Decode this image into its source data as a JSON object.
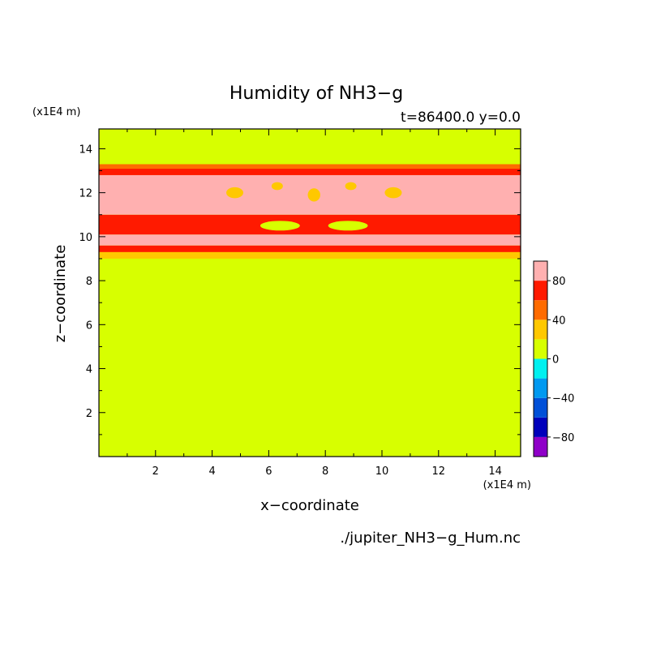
{
  "chart_data": {
    "type": "heatmap",
    "title": "Humidity of NH3−g",
    "subtitle": "t=86400.0 y=0.0",
    "xlabel": "x−coordinate",
    "ylabel": "z−coordinate",
    "x_unit": "(x1E4 m)",
    "y_unit": "(x1E4 m)",
    "source": "./jupiter_NH3−g_Hum.nc",
    "xlim": [
      0,
      14.9
    ],
    "ylim": [
      0,
      14.9
    ],
    "xticks": [
      2,
      4,
      6,
      8,
      10,
      12,
      14
    ],
    "yticks": [
      2,
      4,
      6,
      8,
      10,
      12,
      14
    ],
    "xtick_labels": [
      "2",
      "4",
      "6",
      "8",
      "10",
      "12",
      "14"
    ],
    "ytick_labels": [
      "2",
      "4",
      "6",
      "8",
      "10",
      "12",
      "14"
    ],
    "colorbar": {
      "levels": [
        -100,
        -80,
        -60,
        -40,
        -20,
        0,
        20,
        40,
        60,
        80,
        100
      ],
      "colors": [
        "#8f00c8",
        "#0000bb",
        "#0050d8",
        "#0099f0",
        "#00f0f0",
        "#d7ff00",
        "#ffc800",
        "#ff6b00",
        "#ff1a00",
        "#ffb0b0"
      ],
      "tick_values": [
        80,
        40,
        0,
        -40,
        -80
      ],
      "tick_labels": [
        "80",
        "40",
        "0",
        "−40",
        "−80"
      ]
    },
    "background_value_range": [
      0,
      20
    ],
    "bands": [
      {
        "z_range": [
          0,
          9.0
        ],
        "value_range": [
          0,
          20
        ]
      },
      {
        "z_range": [
          9.0,
          9.3
        ],
        "value_range": [
          20,
          40
        ]
      },
      {
        "z_range": [
          9.3,
          9.6
        ],
        "value_range": [
          60,
          80
        ]
      },
      {
        "z_range": [
          9.6,
          10.1
        ],
        "value_range": [
          80,
          100
        ]
      },
      {
        "z_range": [
          10.1,
          11.0
        ],
        "value_range": [
          60,
          80
        ]
      },
      {
        "z_range": [
          11.0,
          12.8
        ],
        "value_range": [
          80,
          100
        ]
      },
      {
        "z_range": [
          12.8,
          13.1
        ],
        "value_range": [
          60,
          80
        ]
      },
      {
        "z_range": [
          13.1,
          13.3
        ],
        "value_range": [
          40,
          60
        ]
      },
      {
        "z_range": [
          13.3,
          14.9
        ],
        "value_range": [
          0,
          20
        ]
      }
    ],
    "features": [
      {
        "x": 6.4,
        "z": 10.5,
        "rx": 0.7,
        "rz": 0.22,
        "value_range": [
          0,
          20
        ]
      },
      {
        "x": 8.8,
        "z": 10.5,
        "rx": 0.7,
        "rz": 0.22,
        "value_range": [
          0,
          20
        ]
      },
      {
        "x": 4.8,
        "z": 12.0,
        "rx": 0.3,
        "rz": 0.25,
        "value_range": [
          20,
          40
        ]
      },
      {
        "x": 6.3,
        "z": 12.3,
        "rx": 0.2,
        "rz": 0.18,
        "value_range": [
          20,
          40
        ]
      },
      {
        "x": 7.6,
        "z": 11.9,
        "rx": 0.22,
        "rz": 0.3,
        "value_range": [
          20,
          40
        ]
      },
      {
        "x": 8.9,
        "z": 12.3,
        "rx": 0.2,
        "rz": 0.18,
        "value_range": [
          20,
          40
        ]
      },
      {
        "x": 10.4,
        "z": 12.0,
        "rx": 0.3,
        "rz": 0.25,
        "value_range": [
          20,
          40
        ]
      }
    ]
  }
}
